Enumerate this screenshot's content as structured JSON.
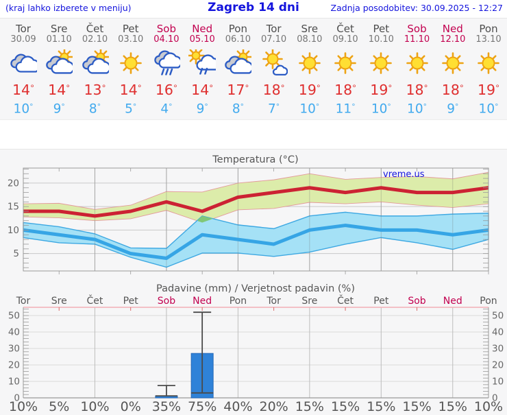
{
  "header": {
    "left": "(kraj lahko izberete v meniju)",
    "title": "Zagreb 14 dni",
    "right": "Zadnja posodobitev: 30.09.2025 - 12:27"
  },
  "watermark": "vreme.us",
  "deg_symbol": "°",
  "colors": {
    "header_text": "#1414dd",
    "weekday": "#4d4d4d",
    "weekend": "#c2004f",
    "temp_max_text": "#df2f2f",
    "temp_min_text": "#42aaee",
    "temp_max_line": "#cc2233",
    "temp_max_band": "#dcecaa",
    "temp_max_band_edge": "#e39a9a",
    "temp_min_line": "#36a5e5",
    "temp_min_band": "#a5e1f6",
    "temp_min_band_edge": "#3da8e2",
    "band_overlap": "#80c878",
    "bar_fill": "#2f82d8",
    "bar_edge": "#2468b8",
    "whisker": "#4a4a4a",
    "prob_low": "#a6e3f8",
    "prob_mid_low": "#8cd8f5",
    "prob_mid": "#3fb2ec",
    "prob_high": "#2828c8",
    "grid": "#c9c9c9",
    "axis": "#999999",
    "precip_top_line": "#f2aeb6",
    "precip_top_ticks": "#d96868"
  },
  "days": [
    {
      "name": "Tor",
      "date": "30.09",
      "weekend": false,
      "icon": "cloudy",
      "tmax": 14,
      "tmin": 10
    },
    {
      "name": "Sre",
      "date": "01.10",
      "weekend": false,
      "icon": "partly-cloudy",
      "tmax": 14,
      "tmin": 9
    },
    {
      "name": "Čet",
      "date": "02.10",
      "weekend": false,
      "icon": "partly-cloudy",
      "tmax": 13,
      "tmin": 8
    },
    {
      "name": "Pet",
      "date": "03.10",
      "weekend": false,
      "icon": "sunny",
      "tmax": 14,
      "tmin": 5
    },
    {
      "name": "Sob",
      "date": "04.10",
      "weekend": true,
      "icon": "rain",
      "tmax": 16,
      "tmin": 4
    },
    {
      "name": "Ned",
      "date": "05.10",
      "weekend": true,
      "icon": "sun-rain",
      "tmax": 14,
      "tmin": 9
    },
    {
      "name": "Pon",
      "date": "06.10",
      "weekend": false,
      "icon": "partly-cloudy",
      "tmax": 17,
      "tmin": 8
    },
    {
      "name": "Tor",
      "date": "07.10",
      "weekend": false,
      "icon": "mostly-sunny",
      "tmax": 18,
      "tmin": 7
    },
    {
      "name": "Sre",
      "date": "08.10",
      "weekend": false,
      "icon": "sunny",
      "tmax": 19,
      "tmin": 10
    },
    {
      "name": "Čet",
      "date": "09.10",
      "weekend": false,
      "icon": "sunny",
      "tmax": 18,
      "tmin": 11
    },
    {
      "name": "Pet",
      "date": "10.10",
      "weekend": false,
      "icon": "sunny",
      "tmax": 19,
      "tmin": 10
    },
    {
      "name": "Sob",
      "date": "11.10",
      "weekend": true,
      "icon": "sunny",
      "tmax": 18,
      "tmin": 10
    },
    {
      "name": "Ned",
      "date": "12.10",
      "weekend": true,
      "icon": "sunny",
      "tmax": 18,
      "tmin": 9
    },
    {
      "name": "Pon",
      "date": "13.10",
      "weekend": false,
      "icon": "sunny",
      "tmax": 19,
      "tmin": 10
    }
  ],
  "chart_data": [
    {
      "type": "line",
      "title": "Temperatura (°C)",
      "categories": [
        "Tor",
        "Sre",
        "Čet",
        "Pet",
        "Sob",
        "Ned",
        "Pon",
        "Tor",
        "Sre",
        "Čet",
        "Pet",
        "Sob",
        "Ned",
        "Pon"
      ],
      "series": [
        {
          "name": "temp_max",
          "values": [
            14,
            14,
            13,
            14,
            16,
            14,
            17,
            18,
            19,
            18,
            19,
            18,
            18,
            19
          ]
        },
        {
          "name": "temp_min",
          "values": [
            10,
            9,
            8,
            5,
            4,
            9,
            8,
            7,
            10,
            11,
            10,
            10,
            9,
            10
          ]
        },
        {
          "name": "temp_max_upper",
          "values": [
            15.6,
            15.7,
            14.4,
            15.3,
            18.2,
            18.1,
            20.0,
            20.7,
            22.0,
            20.8,
            21.2,
            21.4,
            20.9,
            22.3
          ]
        },
        {
          "name": "temp_max_lower",
          "values": [
            12.8,
            12.6,
            12.0,
            12.4,
            14.2,
            11.6,
            14.3,
            14.6,
            15.9,
            15.6,
            16.0,
            15.3,
            14.8,
            15.6
          ]
        },
        {
          "name": "temp_min_upper",
          "values": [
            11.6,
            10.7,
            9.2,
            6.2,
            6.1,
            13.0,
            11.1,
            10.3,
            13.0,
            13.8,
            13.0,
            13.0,
            13.4,
            13.6
          ]
        },
        {
          "name": "temp_min_lower",
          "values": [
            8.4,
            7.3,
            7.0,
            4.2,
            2.1,
            5.1,
            5.1,
            4.4,
            5.3,
            7.0,
            8.4,
            7.3,
            5.9,
            8.0
          ]
        }
      ],
      "ylim": [
        1.3,
        23.2
      ],
      "yticks": [
        5,
        10,
        15,
        20
      ],
      "grid": true,
      "legend": "none",
      "xlabel": "",
      "ylabel": ""
    },
    {
      "type": "bar",
      "title": "Padavine (mm) / Verjetnost padavin (%)",
      "categories": [
        "Tor",
        "Sre",
        "Čet",
        "Pet",
        "Sob",
        "Ned",
        "Pon",
        "Tor",
        "Sre",
        "Čet",
        "Pet",
        "Sob",
        "Ned",
        "Pon"
      ],
      "weekend_flags": [
        false,
        false,
        false,
        false,
        true,
        true,
        false,
        false,
        false,
        false,
        false,
        true,
        true,
        false
      ],
      "values": [
        0,
        0,
        0,
        0,
        1.2,
        27,
        0,
        0,
        0,
        0,
        0,
        0,
        0,
        0
      ],
      "whiskers": [
        null,
        null,
        null,
        null,
        [
          1.2,
          7.5
        ],
        [
          3,
          52
        ],
        null,
        null,
        null,
        null,
        null,
        null,
        null,
        null
      ],
      "probabilities": [
        10,
        5,
        10,
        0,
        35,
        75,
        40,
        20,
        15,
        15,
        15,
        15,
        15,
        10
      ],
      "probability_labels": [
        "10%",
        "5%",
        "10%",
        "0%",
        "35%",
        "75%",
        "40%",
        "20%",
        "15%",
        "15%",
        "15%",
        "15%",
        "15%",
        "10%"
      ],
      "ylim": [
        0,
        55
      ],
      "yticks": [
        0,
        10,
        20,
        30,
        40,
        50
      ],
      "grid": true,
      "legend": "none",
      "xlabel": "",
      "ylabel": ""
    }
  ]
}
